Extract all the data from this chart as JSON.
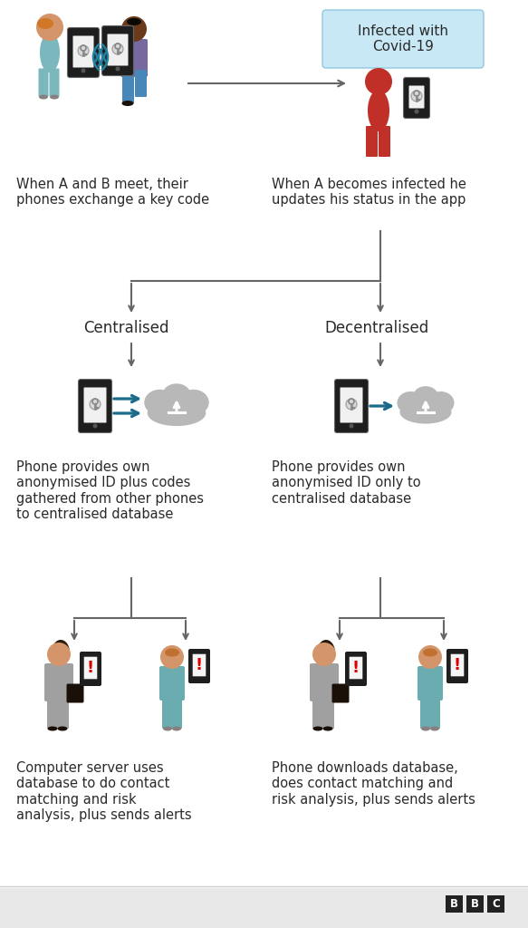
{
  "bg_color": "#ffffff",
  "text_color": "#2a2a2a",
  "arrow_color": "#666666",
  "blue_arrow_color": "#1a6b8a",
  "cloud_color": "#b8b8b8",
  "infected_box_color": "#c8e8f5",
  "infected_box_border": "#90c8e0",
  "infected_box_text": "Infected with\nCovid-19",
  "top_left_caption": "When A and B meet, their\nphones exchange a key code",
  "top_right_caption": "When A becomes infected he\nupdates his status in the app",
  "centralised_label": "Centralised",
  "decentralised_label": "Decentralised",
  "centralised_caption": "Phone provides own\nanonymised ID plus codes\ngathered from other phones\nto centralised database",
  "decentralised_caption": "Phone provides own\nanonymised ID only to\ncentralised database",
  "bottom_left_caption": "Computer server uses\ndatabase to do contact\nmatching and risk\nanalysis, plus sends alerts",
  "bottom_right_caption": "Phone downloads database,\ndoes contact matching and\nrisk analysis, plus sends alerts",
  "wifi_color": "#2580a0",
  "woman_skin": "#d4956a",
  "woman_a_hair": "#d07828",
  "woman_b_hair": "#c07030",
  "man_skin": "#6a3a1a",
  "man_hair": "#1a1008",
  "woman_a_body": "#7ab8be",
  "man_body": "#7868a0",
  "man_legs": "#4888b8",
  "infected_color": "#c03028",
  "grey_suit": "#a0a0a0",
  "teal_suit": "#6aacb0",
  "bag_color": "#1a1008",
  "phone_dark": "#1e1e1e",
  "phone_screen": "#ffffff",
  "alert_red": "#dd0000",
  "bbc_bg": "#e8e8e8",
  "bbc_box": "#222222"
}
